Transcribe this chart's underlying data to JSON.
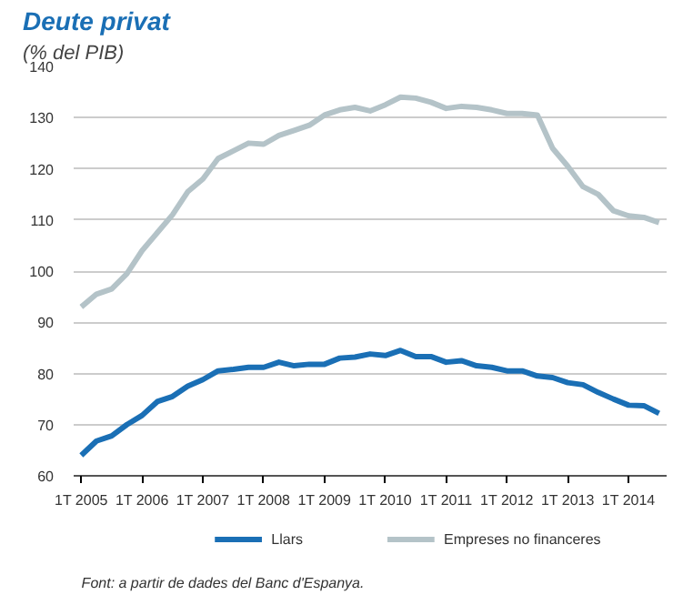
{
  "chart_data": {
    "type": "line",
    "title": "Deute privat",
    "subtitle": "(% del PIB)",
    "categories": [
      "1T 2005",
      null,
      null,
      null,
      "1T 2006",
      null,
      null,
      null,
      "1T 2007",
      null,
      null,
      null,
      "1T 2008",
      null,
      null,
      null,
      "1T 2009",
      null,
      null,
      null,
      "1T 2010",
      null,
      null,
      null,
      "1T 2011",
      null,
      null,
      null,
      "1T 2012",
      null,
      null,
      null,
      "1T 2013",
      null,
      null,
      null,
      "1T 2014",
      null,
      null
    ],
    "series": [
      {
        "name": "Llars",
        "color": "#1a6fb5",
        "values": [
          64,
          66.8,
          67.8,
          70,
          71.8,
          74.5,
          75.5,
          77.5,
          78.8,
          80.5,
          80.8,
          81.2,
          81.2,
          82.2,
          81.5,
          81.8,
          81.8,
          83,
          83.2,
          83.8,
          83.5,
          84.5,
          83.3,
          83.3,
          82.2,
          82.5,
          81.5,
          81.2,
          80.5,
          80.5,
          79.5,
          79.2,
          78.2,
          77.8,
          76.3,
          75,
          73.8,
          73.7,
          72.2
        ]
      },
      {
        "name": "Empreses no financeres",
        "color": "#b4c3c8",
        "values": [
          93,
          95.5,
          96.5,
          99.5,
          104,
          107.5,
          111,
          115.5,
          118,
          122,
          123.5,
          125,
          124.8,
          126.5,
          127.5,
          128.5,
          130.5,
          131.5,
          132,
          131.3,
          132.5,
          134,
          133.8,
          133,
          131.8,
          132.2,
          132,
          131.5,
          130.8,
          130.8,
          130.5,
          124,
          120.5,
          116.5,
          115,
          111.8,
          110.8,
          110.5,
          109.5
        ]
      }
    ],
    "ylim": [
      60,
      140
    ],
    "yticks": [
      60,
      70,
      80,
      90,
      100,
      110,
      120,
      130,
      140
    ],
    "grid": "y",
    "legend": "bottom",
    "line_style": "solid",
    "marker": "none",
    "annotations": [
      "Font: a partir de dades del Banc d'Espanya."
    ]
  }
}
